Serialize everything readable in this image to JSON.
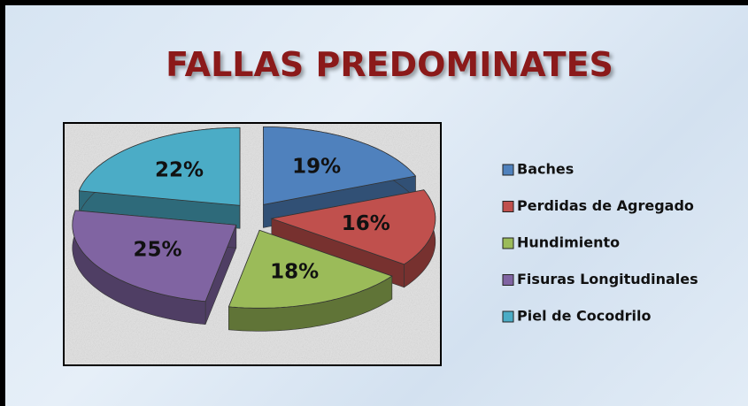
{
  "chart_data": {
    "type": "pie",
    "title": "FALLAS PREDOMINATES",
    "categories": [
      "Baches",
      "Perdidas de Agregado",
      "Hundimiento",
      "Fisuras Longitudinales",
      "Piel de Cocodrilo"
    ],
    "values": [
      19,
      16,
      18,
      25,
      22
    ],
    "value_labels": [
      "19%",
      "16%",
      "18%",
      "25%",
      "22%"
    ],
    "colors": [
      "#4f81bd",
      "#c0504d",
      "#9bbb59",
      "#8064a2",
      "#4bacc6"
    ],
    "legend": "right"
  }
}
